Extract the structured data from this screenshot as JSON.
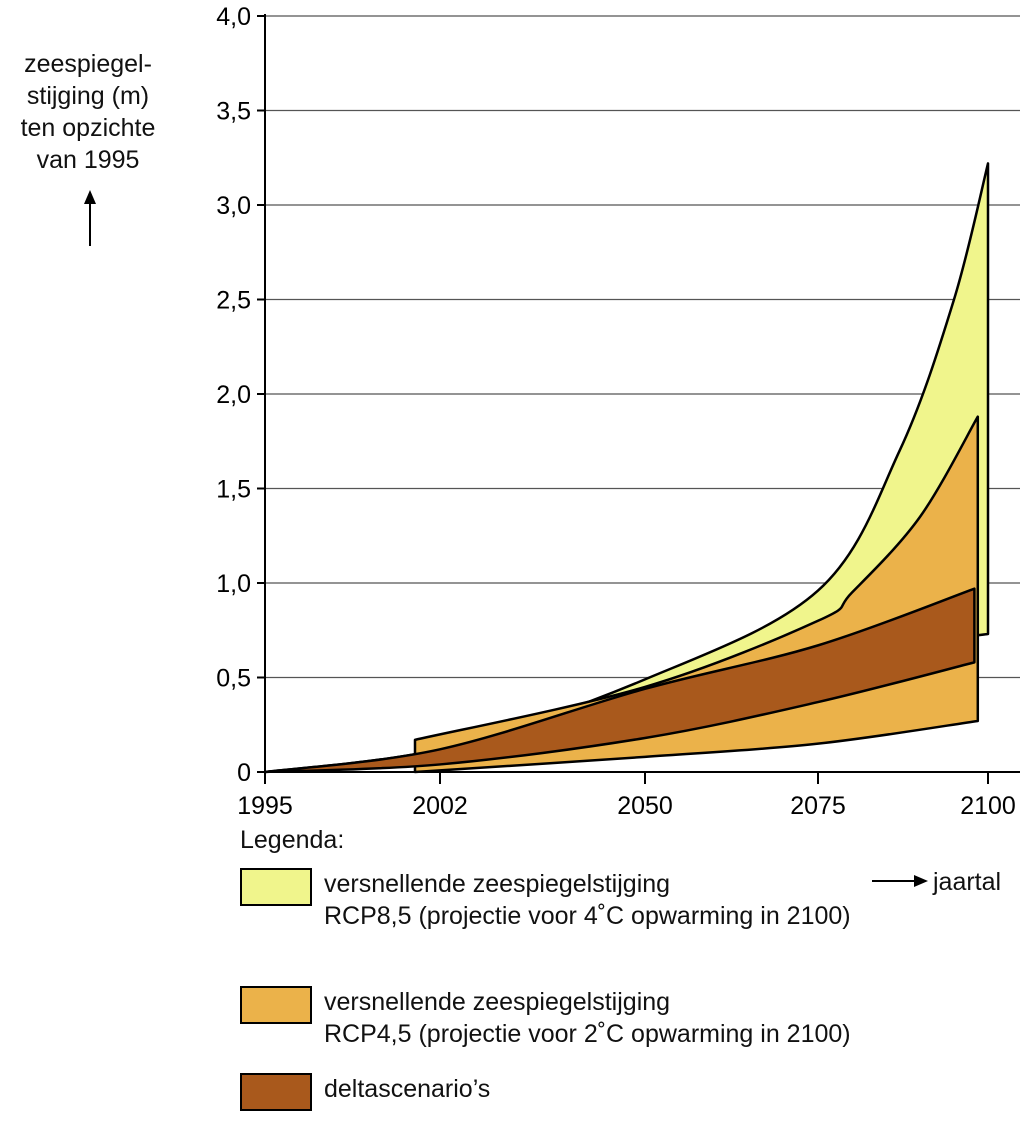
{
  "chart_data": {
    "type": "area",
    "ylabel": "zeespiegelstijging (m) ten opzichte van 1995",
    "ylabel_lines": [
      "zeespiegel-",
      "stijging (m)",
      "ten opzichte",
      "van 1995"
    ],
    "xlabel": "jaartal",
    "ylim": [
      0,
      4.0
    ],
    "y_ticks": [
      "0",
      "0,5",
      "1,0",
      "1,5",
      "2,0",
      "2,5",
      "3,0",
      "3,5",
      "4,0"
    ],
    "y_tick_values": [
      0,
      0.5,
      1.0,
      1.5,
      2.0,
      2.5,
      3.0,
      3.5,
      4.0
    ],
    "x_ticks": [
      "1995",
      "2002",
      "2050",
      "2075",
      "2100"
    ],
    "x_tick_values": [
      1995,
      2002,
      2050,
      2075,
      2100
    ],
    "grid": true,
    "series": [
      {
        "name": "RCP8,5",
        "color": "#F0F58C",
        "upper": [
          [
            1995,
            0
          ],
          [
            2002,
            0.12
          ],
          [
            2050,
            0.49
          ],
          [
            2075,
            0.96
          ],
          [
            2087,
            1.7
          ],
          [
            2095,
            2.5
          ],
          [
            2100,
            3.22
          ]
        ],
        "lower": [
          [
            1995,
            0
          ],
          [
            2002,
            0.12
          ],
          [
            2050,
            0.44
          ],
          [
            2075,
            0.62
          ],
          [
            2100,
            0.73
          ]
        ]
      },
      {
        "name": "RCP4,5",
        "color": "#EBB24A",
        "upper": [
          [
            2001,
            0.17
          ],
          [
            2050,
            0.45
          ],
          [
            2075,
            0.8
          ],
          [
            2080,
            0.95
          ],
          [
            2090,
            1.35
          ],
          [
            2098.5,
            1.88
          ]
        ],
        "lower": [
          [
            2001,
            0
          ],
          [
            2050,
            0.08
          ],
          [
            2075,
            0.15
          ],
          [
            2098.5,
            0.27
          ]
        ]
      },
      {
        "name": "deltascenario's",
        "color": "#A9591C",
        "upper": [
          [
            1995,
            0
          ],
          [
            2002,
            0.12
          ],
          [
            2050,
            0.44
          ],
          [
            2075,
            0.67
          ],
          [
            2098,
            0.97
          ]
        ],
        "lower": [
          [
            1995,
            0
          ],
          [
            2002,
            0.04
          ],
          [
            2050,
            0.18
          ],
          [
            2075,
            0.37
          ],
          [
            2098,
            0.58
          ]
        ]
      }
    ],
    "legend_title": "Legenda:",
    "legend": [
      {
        "line1": "versnellende zeespiegelstijging",
        "line2": "RCP8,5 (projectie voor 4˚C opwarming in 2100)",
        "color": "#F0F58C"
      },
      {
        "line1": "versnellende zeespiegelstijging",
        "line2": "RCP4,5 (projectie voor 2˚C opwarming in 2100)",
        "color": "#EBB24A"
      },
      {
        "line1": "deltascenario’s",
        "line2": "",
        "color": "#A9591C"
      }
    ],
    "legend_placement": "bottom"
  }
}
